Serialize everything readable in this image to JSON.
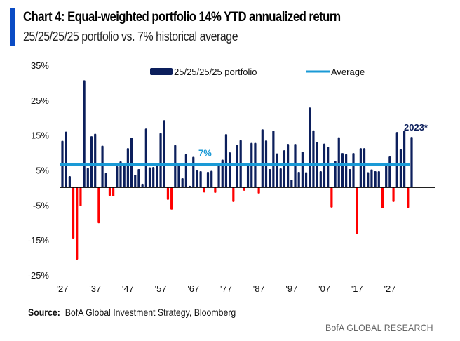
{
  "header": {
    "title": "Chart 4: Equal-weighted portfolio 14% YTD annualized return",
    "subtitle": "25/25/25/25 portfolio vs. 7% historical average",
    "accent_color": "#0a4bc4"
  },
  "footer": {
    "source_label": "Source:",
    "source_text": "BofA Global Investment Strategy, Bloomberg",
    "brand": "BofA GLOBAL RESEARCH"
  },
  "chart_data": {
    "type": "bar",
    "title": "Chart 4: Equal-weighted portfolio 14% YTD annualized return",
    "subtitle": "25/25/25/25 portfolio vs. 7% historical average",
    "xlabel": "",
    "ylabel": "",
    "ylim": [
      -25,
      35
    ],
    "yticks": [
      35,
      25,
      15,
      5,
      -5,
      -15,
      -25
    ],
    "ytick_labels": [
      "35%",
      "25%",
      "15%",
      "5%",
      "-5%",
      "-15%",
      "-25%"
    ],
    "xtick_labels": [
      "'27",
      "'37",
      "'47",
      "'57",
      "'67",
      "'77",
      "'87",
      "'97",
      "'07",
      "'17",
      "'27"
    ],
    "grid": false,
    "legend": {
      "placement": "top",
      "entries": [
        {
          "name": "25/25/25/25 portfolio",
          "type": "bar",
          "color": "#0c1f5c"
        },
        {
          "name": "Average",
          "type": "line",
          "color": "#1a9ad6"
        }
      ]
    },
    "colors": {
      "positive": "#0c1f5c",
      "negative": "#ff0000",
      "average": "#1a9ad6",
      "average_label": "#1a9ad6",
      "axis": "#000000"
    },
    "x_start_year": 1927,
    "x": [
      1927,
      1928,
      1929,
      1930,
      1931,
      1932,
      1933,
      1934,
      1935,
      1936,
      1937,
      1938,
      1939,
      1940,
      1941,
      1942,
      1943,
      1944,
      1945,
      1946,
      1947,
      1948,
      1949,
      1950,
      1951,
      1952,
      1953,
      1954,
      1955,
      1956,
      1957,
      1958,
      1959,
      1960,
      1961,
      1962,
      1963,
      1964,
      1965,
      1966,
      1967,
      1968,
      1969,
      1970,
      1971,
      1972,
      1973,
      1974,
      1975,
      1976,
      1977,
      1978,
      1979,
      1980,
      1981,
      1982,
      1983,
      1984,
      1985,
      1986,
      1987,
      1988,
      1989,
      1990,
      1991,
      1992,
      1993,
      1994,
      1995,
      1996,
      1997,
      1998,
      1999,
      2000,
      2001,
      2002,
      2003,
      2004,
      2005,
      2006,
      2007,
      2008,
      2009,
      2010,
      2011,
      2012,
      2013,
      2014,
      2015,
      2016,
      2017,
      2018,
      2019,
      2020,
      2021,
      2022,
      2023
    ],
    "series": [
      {
        "name": "25/25/25/25 portfolio",
        "values": [
          13.4,
          16,
          3.3,
          -14.6,
          -20.6,
          -5.3,
          30.7,
          5.6,
          14.7,
          15.4,
          -10.2,
          12,
          4.2,
          -2.4,
          -2.5,
          6.1,
          7.5,
          6.5,
          11.3,
          14.3,
          3.7,
          5.3,
          1.1,
          16.9,
          5.8,
          5.9,
          6.4,
          15.6,
          19.3,
          -3.5,
          -6.3,
          12.2,
          7,
          2.7,
          9.6,
          0.5,
          8.8,
          4.9,
          4.7,
          -1.4,
          4.5,
          4.8,
          -1.5,
          6.3,
          8,
          15.3,
          10.1,
          -4.1,
          12.3,
          13.6,
          -0.9,
          7,
          12.8,
          12.8,
          -1.7,
          16.7,
          13.5,
          5.3,
          16.3,
          9.8,
          5.5,
          10.7,
          12.5,
          2.3,
          12.5,
          4.5,
          10.3,
          4.4,
          22.9,
          16.4,
          13.1,
          4.7,
          12.6,
          11.7,
          -5.7,
          7.7,
          14.4,
          9.9,
          9.6,
          5.3,
          9.9,
          -13.3,
          11.3,
          11.3,
          4.4,
          5.2,
          4.7,
          4.7,
          -5.9,
          6.9,
          8.9,
          -4.1,
          15.9,
          11,
          16.3,
          -5.8,
          14.5
        ]
      },
      {
        "name": "Average",
        "value": 6.6
      }
    ],
    "annotations": [
      {
        "text": "7%",
        "target": "Average",
        "near_year": 1967
      },
      {
        "text": "2023*",
        "target": "25/25/25/25 portfolio",
        "year": 2023
      }
    ]
  }
}
